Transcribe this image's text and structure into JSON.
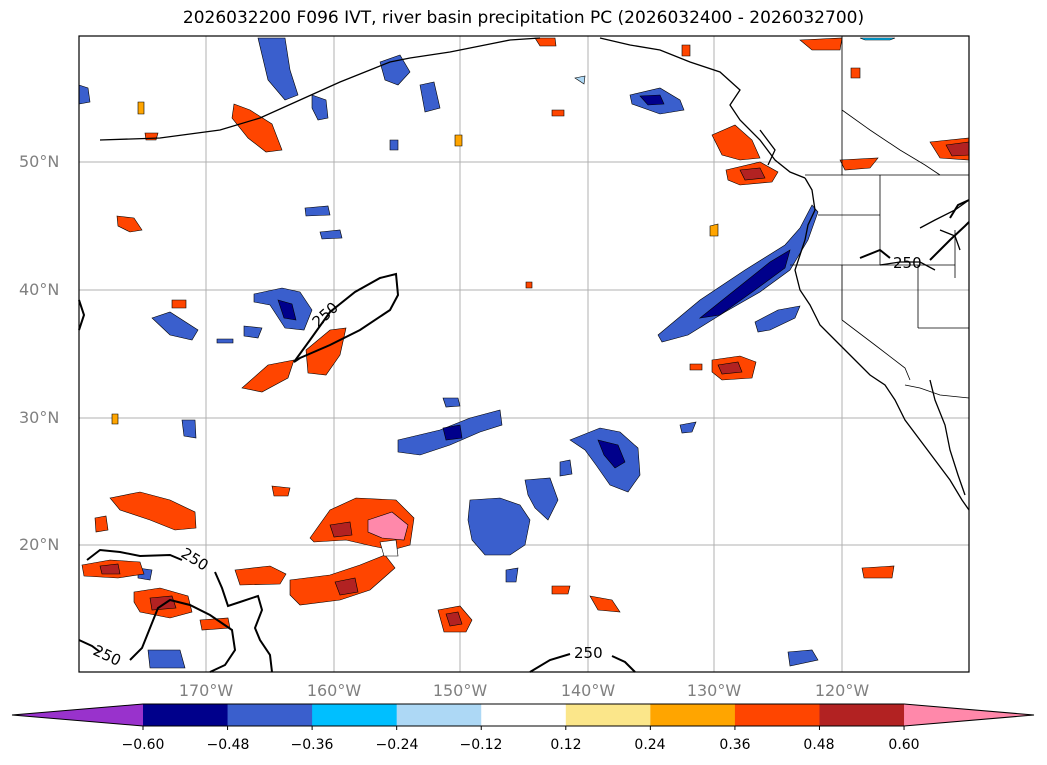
{
  "title": "2026032200 F096 IVT, river basin precipitation PC (2026032400 - 2026032700)",
  "lat_labels": [
    "50°N",
    "40°N",
    "30°N",
    "20°N"
  ],
  "lon_labels": [
    "170°W",
    "160°W",
    "150°W",
    "140°W",
    "130°W",
    "120°W"
  ],
  "contour_label": "250",
  "colorbar": {
    "tick_labels": [
      "−0.60",
      "−0.48",
      "−0.36",
      "−0.24",
      "−0.12",
      "0.12",
      "0.24",
      "0.36",
      "0.48",
      "0.60"
    ],
    "colors": [
      "#9932cc",
      "#00008b",
      "#3a5fcd",
      "#00bfff",
      "#add8f5",
      "#ffffff",
      "#fbe68a",
      "#ffa500",
      "#ff4500",
      "#b22222",
      "#ff88aa"
    ]
  }
}
